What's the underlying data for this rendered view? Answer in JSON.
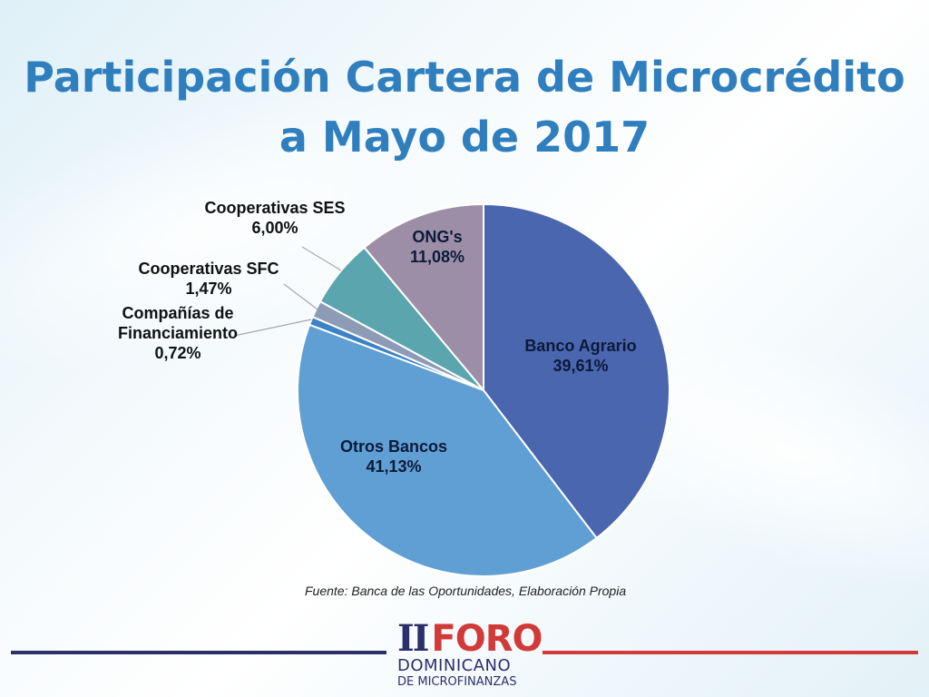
{
  "slide": {
    "title_line1": "Participación Cartera de Microcrédito",
    "title_line2": "a Mayo de 2017",
    "source": "Fuente: Banca de las Oportunidades, Elaboración Propia"
  },
  "logo": {
    "roman": "II",
    "word": "FORO",
    "line1": "DOMINICANO",
    "line2": "DE MICROFINANZAS"
  },
  "colors": {
    "title": "#2f7fbf",
    "left_rule": "#2b2f6b",
    "right_rule": "#d23a3a"
  },
  "chart_data": {
    "type": "pie",
    "slices": [
      {
        "label": "Banco Agrario",
        "value": 39.61,
        "display": "39,61%",
        "color": "#4a66ae"
      },
      {
        "label": "Otros Bancos",
        "value": 41.13,
        "display": "41,13%",
        "color": "#5f9fd3"
      },
      {
        "label": "Compañías de Financiamiento",
        "value": 0.72,
        "display": "0,72%",
        "color": "#3c82c4"
      },
      {
        "label": "Cooperativas SFC",
        "value": 1.47,
        "display": "1,47%",
        "color": "#8d9bb6"
      },
      {
        "label": "Cooperativas SES",
        "value": 6.0,
        "display": "6,00%",
        "color": "#5aa5ae"
      },
      {
        "label": "ONG's",
        "value": 11.08,
        "display": "11,08%",
        "color": "#9d8ea7"
      }
    ]
  }
}
